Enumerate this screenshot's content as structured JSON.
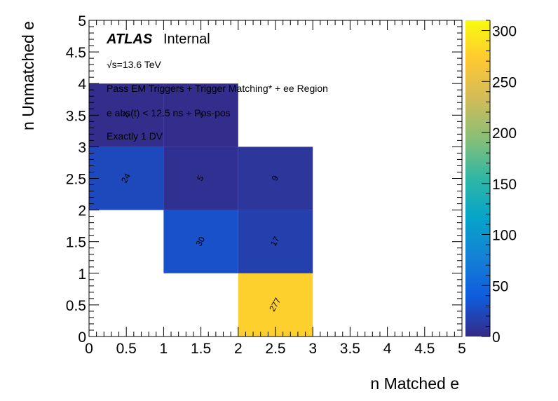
{
  "chart_data": {
    "type": "heatmap",
    "xlabel": "n Matched e",
    "ylabel": "n Unmatched e",
    "xlim": [
      0,
      5
    ],
    "ylim": [
      0,
      5
    ],
    "x_ticks": [
      "0",
      "0.5",
      "1",
      "1.5",
      "2",
      "2.5",
      "3",
      "3.5",
      "4",
      "4.5",
      "5"
    ],
    "y_ticks": [
      "0",
      "0.5",
      "1",
      "1.5",
      "2",
      "2.5",
      "3",
      "3.5",
      "4",
      "4.5",
      "5"
    ],
    "color_range": [
      0,
      310
    ],
    "colorbar_ticks": [
      "0",
      "50",
      "100",
      "150",
      "200",
      "250",
      "300"
    ],
    "annotations": {
      "atlas": "ATLAS",
      "internal": "Internal",
      "energy": "√s=13.6 TeV",
      "selection": "Pass EM Triggers + Trigger Matching* + ee Region",
      "timing": "e abs(t) < 12.5 ns + Pos-pos",
      "dv": "Exactly 1 DV"
    },
    "cells": [
      {
        "x": [
          2,
          3
        ],
        "y": [
          0,
          1
        ],
        "value": 277,
        "label": "277"
      },
      {
        "x": [
          1,
          2
        ],
        "y": [
          1,
          2
        ],
        "value": 30,
        "label": "30"
      },
      {
        "x": [
          2,
          3
        ],
        "y": [
          1,
          2
        ],
        "value": 17,
        "label": "17"
      },
      {
        "x": [
          0,
          1
        ],
        "y": [
          2,
          3
        ],
        "value": 24,
        "label": "24"
      },
      {
        "x": [
          1,
          2
        ],
        "y": [
          2,
          3
        ],
        "value": 5,
        "label": "5"
      },
      {
        "x": [
          2,
          3
        ],
        "y": [
          2,
          3
        ],
        "value": 9,
        "label": "9"
      },
      {
        "x": [
          0,
          1
        ],
        "y": [
          3,
          4
        ],
        "value": 2,
        "label": "2"
      },
      {
        "x": [
          1,
          2
        ],
        "y": [
          3,
          4
        ],
        "value": 2,
        "label": "2"
      }
    ],
    "colors": {
      "palette": [
        "#352a87",
        "#0f5cdd",
        "#1481d6",
        "#06a4ca",
        "#2eb7a4",
        "#87bf77",
        "#d1bb59",
        "#fec832",
        "#f9fb0e"
      ]
    }
  }
}
